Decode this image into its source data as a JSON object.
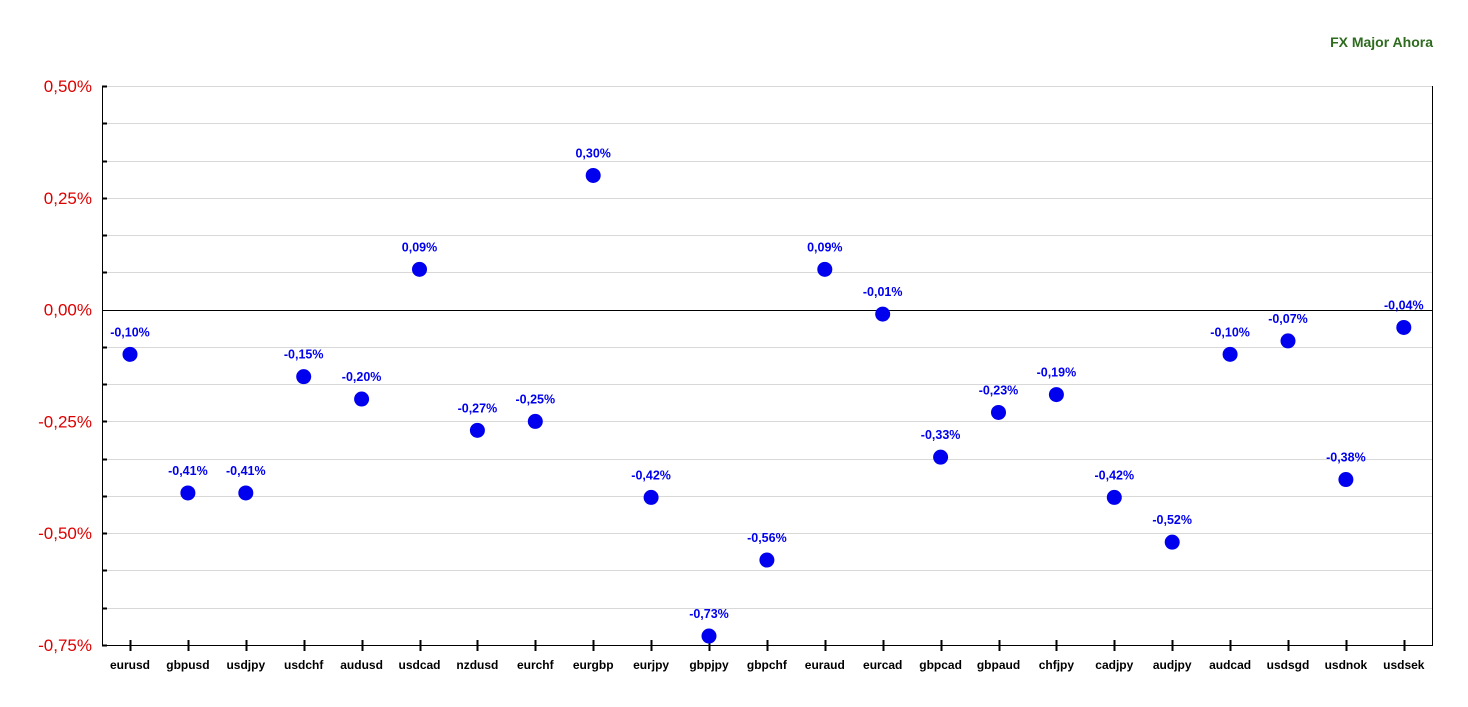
{
  "chart_data": {
    "type": "scatter",
    "title": "FX Major Ahora",
    "categories": [
      "eurusd",
      "gbpusd",
      "usdjpy",
      "usdchf",
      "audusd",
      "usdcad",
      "nzdusd",
      "eurchf",
      "eurgbp",
      "eurjpy",
      "gbpjpy",
      "gbpchf",
      "euraud",
      "eurcad",
      "gbpcad",
      "gbpaud",
      "chfjpy",
      "cadjpy",
      "audjpy",
      "audcad",
      "usdsgd",
      "usdnok",
      "usdsek"
    ],
    "values": [
      -0.1,
      -0.41,
      -0.41,
      -0.15,
      -0.2,
      0.09,
      -0.27,
      -0.25,
      0.3,
      -0.42,
      -0.73,
      -0.56,
      0.09,
      -0.01,
      -0.33,
      -0.23,
      -0.19,
      -0.42,
      -0.52,
      -0.1,
      -0.07,
      -0.38,
      -0.04
    ],
    "data_labels": [
      "-0,10%",
      "-0,41%",
      "-0,41%",
      "-0,15%",
      "-0,20%",
      "0,09%",
      "-0,27%",
      "-0,25%",
      "0,30%",
      "-0,42%",
      "-0,73%",
      "-0,56%",
      "0,09%",
      "-0,01%",
      "-0,33%",
      "-0,23%",
      "-0,19%",
      "-0,42%",
      "-0,52%",
      "-0,10%",
      "-0,07%",
      "-0,38%",
      "-0,04%"
    ],
    "ylim": [
      -0.75,
      0.5
    ],
    "yticks": [
      0.5,
      0.25,
      0.0,
      -0.25,
      -0.5,
      -0.75
    ],
    "ytick_labels": [
      "0,50%",
      "0,25%",
      "0,00%",
      "-0,25%",
      "-0,50%",
      "-0,75%"
    ],
    "grid": true,
    "colors": {
      "marker": "#0000ee",
      "data_label": "#0000ee",
      "ytick_label": "#dd0000",
      "title": "#2e6b1e",
      "grid": "#d8d8d8",
      "axis": "#000000"
    }
  }
}
